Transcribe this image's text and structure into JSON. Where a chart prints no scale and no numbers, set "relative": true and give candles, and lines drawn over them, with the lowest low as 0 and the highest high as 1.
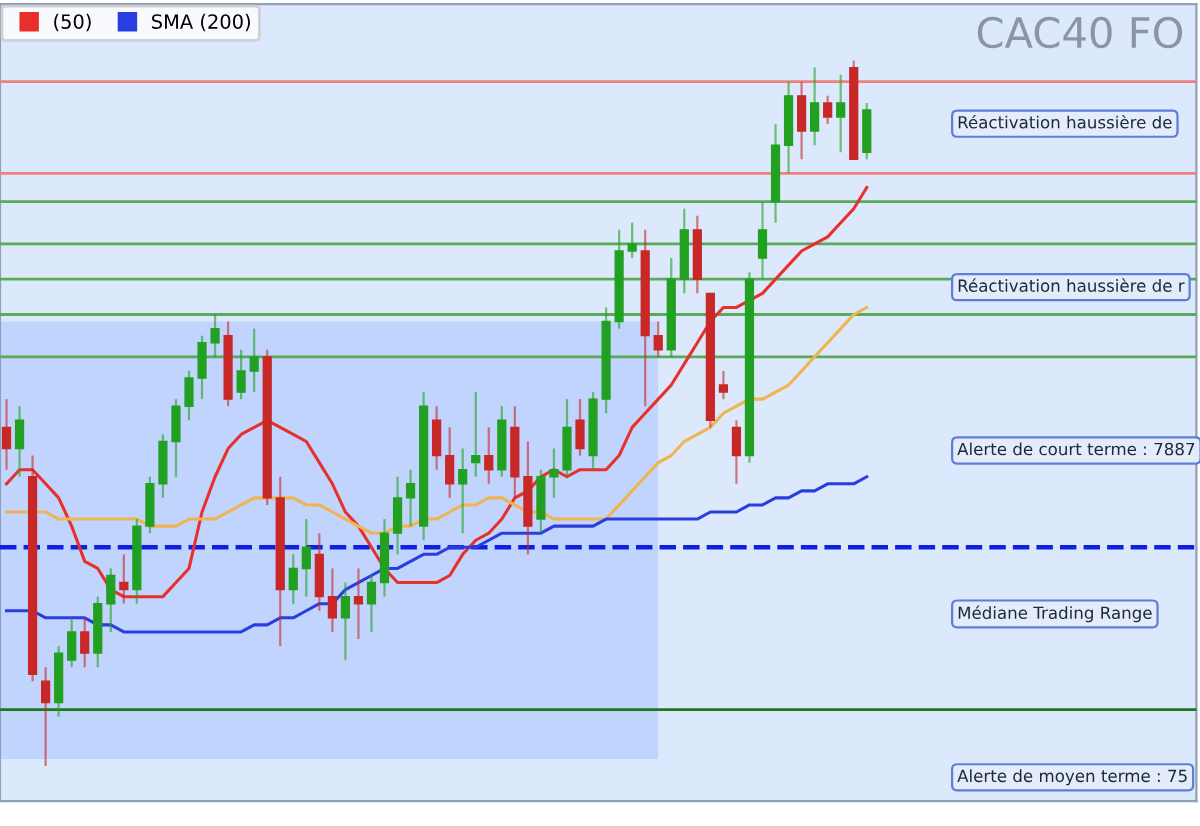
{
  "chart_data": {
    "type": "candlestick",
    "title": "CAC40 FO",
    "relative": true,
    "legend": "top left",
    "categories": [
      null,
      null,
      null,
      null,
      null,
      null,
      null,
      null,
      null,
      null,
      null,
      null,
      null,
      null,
      null,
      null,
      null,
      null,
      null,
      null,
      null,
      null,
      null,
      null,
      null,
      null,
      null,
      null,
      null,
      null,
      null,
      null,
      null,
      null,
      null,
      null,
      null,
      null,
      null,
      null,
      null,
      null,
      null,
      null,
      null,
      null,
      null,
      null,
      null,
      null,
      null,
      null,
      null,
      null,
      null,
      null,
      null,
      null,
      null,
      null,
      null,
      null,
      null,
      null,
      null,
      null,
      null
    ],
    "ohlc": [
      [
        0.48,
        0.52,
        0.42,
        0.45
      ],
      [
        0.45,
        0.51,
        0.41,
        0.49
      ],
      [
        0.41,
        0.44,
        0.12,
        0.13
      ],
      [
        0.12,
        0.14,
        0.0,
        0.09
      ],
      [
        0.09,
        0.17,
        0.07,
        0.16
      ],
      [
        0.15,
        0.21,
        0.14,
        0.19
      ],
      [
        0.19,
        0.21,
        0.14,
        0.16
      ],
      [
        0.16,
        0.24,
        0.14,
        0.23
      ],
      [
        0.23,
        0.28,
        0.19,
        0.27
      ],
      [
        0.26,
        0.3,
        0.23,
        0.25
      ],
      [
        0.25,
        0.35,
        0.23,
        0.34
      ],
      [
        0.34,
        0.41,
        0.33,
        0.4
      ],
      [
        0.4,
        0.47,
        0.38,
        0.46
      ],
      [
        0.46,
        0.52,
        0.41,
        0.51
      ],
      [
        0.51,
        0.56,
        0.49,
        0.55
      ],
      [
        0.55,
        0.61,
        0.52,
        0.6
      ],
      [
        0.6,
        0.64,
        0.58,
        0.62
      ],
      [
        0.61,
        0.63,
        0.51,
        0.52
      ],
      [
        0.53,
        0.59,
        0.52,
        0.56
      ],
      [
        0.56,
        0.62,
        0.53,
        0.58
      ],
      [
        0.58,
        0.59,
        0.37,
        0.38
      ],
      [
        0.38,
        0.41,
        0.17,
        0.25
      ],
      [
        0.25,
        0.3,
        0.23,
        0.28
      ],
      [
        0.28,
        0.35,
        0.24,
        0.31
      ],
      [
        0.3,
        0.33,
        0.22,
        0.24
      ],
      [
        0.24,
        0.28,
        0.19,
        0.21
      ],
      [
        0.21,
        0.26,
        0.15,
        0.24
      ],
      [
        0.24,
        0.28,
        0.18,
        0.23
      ],
      [
        0.23,
        0.27,
        0.19,
        0.26
      ],
      [
        0.26,
        0.35,
        0.24,
        0.33
      ],
      [
        0.33,
        0.41,
        0.3,
        0.38
      ],
      [
        0.38,
        0.42,
        0.34,
        0.4
      ],
      [
        0.34,
        0.53,
        0.32,
        0.51
      ],
      [
        0.49,
        0.51,
        0.42,
        0.44
      ],
      [
        0.44,
        0.48,
        0.38,
        0.4
      ],
      [
        0.4,
        0.45,
        0.33,
        0.42
      ],
      [
        0.43,
        0.53,
        0.41,
        0.44
      ],
      [
        0.44,
        0.48,
        0.4,
        0.42
      ],
      [
        0.42,
        0.51,
        0.41,
        0.49
      ],
      [
        0.48,
        0.51,
        0.38,
        0.41
      ],
      [
        0.41,
        0.46,
        0.3,
        0.34
      ],
      [
        0.35,
        0.42,
        0.33,
        0.41
      ],
      [
        0.41,
        0.45,
        0.38,
        0.42
      ],
      [
        0.42,
        0.52,
        0.41,
        0.48
      ],
      [
        0.49,
        0.52,
        0.44,
        0.45
      ],
      [
        0.44,
        0.53,
        0.42,
        0.52
      ],
      [
        0.52,
        0.65,
        0.5,
        0.63
      ],
      [
        0.63,
        0.76,
        0.62,
        0.73
      ],
      [
        0.73,
        0.77,
        0.72,
        0.74
      ],
      [
        0.73,
        0.76,
        0.51,
        0.61
      ],
      [
        0.61,
        0.63,
        0.58,
        0.59
      ],
      [
        0.59,
        0.72,
        0.58,
        0.69
      ],
      [
        0.69,
        0.79,
        0.67,
        0.76
      ],
      [
        0.76,
        0.78,
        0.67,
        0.69
      ],
      [
        0.67,
        0.67,
        0.48,
        0.49
      ],
      [
        0.54,
        0.56,
        0.52,
        0.53
      ],
      [
        0.48,
        0.49,
        0.4,
        0.44
      ],
      [
        0.44,
        0.7,
        0.43,
        0.69
      ],
      [
        0.72,
        0.8,
        0.69,
        0.76
      ],
      [
        0.8,
        0.91,
        0.77,
        0.88
      ],
      [
        0.88,
        0.97,
        0.84,
        0.95
      ],
      [
        0.95,
        0.97,
        0.86,
        0.9
      ],
      [
        0.9,
        0.99,
        0.88,
        0.94
      ],
      [
        0.94,
        0.95,
        0.91,
        0.92
      ],
      [
        0.92,
        0.98,
        0.87,
        0.94
      ],
      [
        0.99,
        1.0,
        0.86,
        0.86
      ],
      [
        0.87,
        0.94,
        0.86,
        0.93
      ]
    ],
    "series": [
      {
        "name": "(50)",
        "type": "line",
        "color": "#e8302a",
        "values": [
          0.4,
          0.42,
          0.42,
          0.4,
          0.38,
          0.34,
          0.29,
          0.28,
          0.25,
          0.24,
          0.24,
          0.24,
          0.24,
          0.26,
          0.28,
          0.36,
          0.41,
          0.45,
          0.47,
          0.48,
          0.49,
          0.48,
          0.47,
          0.46,
          0.43,
          0.4,
          0.36,
          0.34,
          0.31,
          0.28,
          0.26,
          0.26,
          0.26,
          0.26,
          0.27,
          0.3,
          0.32,
          0.33,
          0.35,
          0.38,
          0.39,
          0.41,
          0.42,
          0.41,
          0.42,
          0.42,
          0.42,
          0.44,
          0.48,
          0.5,
          0.52,
          0.54,
          0.57,
          0.6,
          0.63,
          0.65,
          0.65,
          0.66,
          0.67,
          0.69,
          0.71,
          0.73,
          0.74,
          0.75,
          0.77,
          0.79,
          0.82
        ]
      },
      {
        "type": "line",
        "color": "#f0b450",
        "values": [
          0.36,
          0.36,
          0.36,
          0.36,
          0.35,
          0.35,
          0.35,
          0.35,
          0.35,
          0.35,
          0.35,
          0.34,
          0.34,
          0.34,
          0.35,
          0.35,
          0.35,
          0.36,
          0.37,
          0.38,
          0.38,
          0.38,
          0.38,
          0.37,
          0.37,
          0.36,
          0.35,
          0.34,
          0.33,
          0.33,
          0.34,
          0.34,
          0.35,
          0.35,
          0.36,
          0.37,
          0.37,
          0.38,
          0.38,
          0.37,
          0.36,
          0.36,
          0.35,
          0.35,
          0.35,
          0.35,
          0.35,
          0.37,
          0.39,
          0.41,
          0.43,
          0.44,
          0.46,
          0.47,
          0.48,
          0.5,
          0.51,
          0.52,
          0.52,
          0.53,
          0.54,
          0.56,
          0.58,
          0.6,
          0.62,
          0.64,
          0.65
        ]
      },
      {
        "name": "SMA (200)",
        "type": "line",
        "color": "#2a3ee0",
        "values": [
          0.22,
          0.22,
          0.22,
          0.21,
          0.21,
          0.21,
          0.21,
          0.2,
          0.2,
          0.19,
          0.19,
          0.19,
          0.19,
          0.19,
          0.19,
          0.19,
          0.19,
          0.19,
          0.19,
          0.2,
          0.2,
          0.21,
          0.21,
          0.22,
          0.23,
          0.23,
          0.25,
          0.26,
          0.27,
          0.28,
          0.28,
          0.29,
          0.3,
          0.3,
          0.31,
          0.31,
          0.31,
          0.32,
          0.33,
          0.33,
          0.33,
          0.33,
          0.34,
          0.34,
          0.34,
          0.34,
          0.35,
          0.35,
          0.35,
          0.35,
          0.35,
          0.35,
          0.35,
          0.35,
          0.36,
          0.36,
          0.36,
          0.37,
          0.37,
          0.38,
          0.38,
          0.39,
          0.39,
          0.4,
          0.4,
          0.4,
          0.41
        ]
      }
    ],
    "ref_lines": [
      {
        "axis": "y",
        "value": 0.97,
        "color": "#f08080"
      },
      {
        "axis": "y",
        "value": 0.84,
        "color": "#f08080"
      },
      {
        "axis": "y",
        "value": 0.8,
        "color": "#5aaa5a"
      },
      {
        "axis": "y",
        "value": 0.74,
        "color": "#5aaa5a"
      },
      {
        "axis": "y",
        "value": 0.69,
        "color": "#5aaa5a"
      },
      {
        "axis": "y",
        "value": 0.64,
        "color": "#5aaa5a"
      },
      {
        "axis": "y",
        "value": 0.58,
        "color": "#5aaa5a"
      },
      {
        "axis": "y",
        "value": 0.31,
        "color": "#1020e0",
        "line_style": "dashed"
      },
      {
        "axis": "y",
        "value": 0.08,
        "color": "#1a7a1a"
      }
    ],
    "bands": [
      {
        "axis": "y",
        "from": 0.01,
        "to": 0.63,
        "color": "#9fbcff"
      }
    ],
    "annotations": [
      "Réactivation haussière de",
      "Réactivation haussière de r",
      "Alerte de court terme : 7887",
      "Médiane Trading Range",
      "Alerte de moyen terme : 75"
    ]
  }
}
